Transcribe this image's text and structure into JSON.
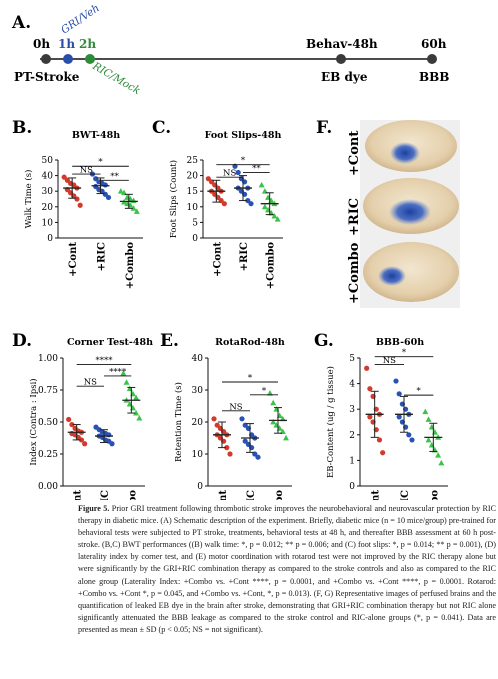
{
  "timeline": {
    "panel_label": "A.",
    "events": [
      {
        "text": "0h",
        "color": "#111111"
      },
      {
        "text": "1h",
        "color": "#2a4fa8"
      },
      {
        "text": "2h",
        "color": "#2e8b3a"
      },
      {
        "text": "Behav-48h",
        "color": "#111111"
      },
      {
        "text": "60h",
        "color": "#111111"
      }
    ],
    "gri": "GRI/Veh",
    "ric": "RIC/Mock",
    "pt": "PT-Stroke",
    "eb": "EB dye",
    "bbb": "BBB"
  },
  "colors": {
    "cont": "#d23a2c",
    "ric": "#2a52b5",
    "combo": "#3cc24a"
  },
  "chart_data": [
    {
      "panel": "B.",
      "type": "scatter",
      "title": "BWT-48h",
      "ylabel": "Walk Time (s)",
      "ylim": [
        0,
        50
      ],
      "yticks": [
        "0",
        "10",
        "20",
        "30",
        "40",
        "50"
      ],
      "categories": [
        "+Cont",
        "+RIC",
        "+Combo"
      ],
      "means": [
        32,
        33.5,
        23.5
      ],
      "sds": [
        6.5,
        5,
        4.5
      ],
      "points": [
        [
          39,
          37,
          35,
          34,
          32,
          31,
          29,
          27,
          25,
          21
        ],
        [
          41,
          38,
          36,
          35,
          34,
          33,
          31,
          30,
          28,
          26
        ],
        [
          30,
          29,
          26,
          25,
          24,
          23,
          22,
          21,
          19,
          17
        ]
      ],
      "sig": [
        {
          "from": 0,
          "to": 1,
          "text": "NS",
          "level": 41
        },
        {
          "from": 0,
          "to": 2,
          "text": "*",
          "level": 46
        },
        {
          "from": 1,
          "to": 2,
          "text": "**",
          "level": 37
        }
      ]
    },
    {
      "panel": "C.",
      "type": "scatter",
      "title": "Foot Slips-48h",
      "ylabel": "Foot Slips (Count)",
      "ylim": [
        0,
        25
      ],
      "yticks": [
        "0",
        "5",
        "10",
        "15",
        "20",
        "25"
      ],
      "categories": [
        "+Cont",
        "+RIC",
        "+Combo"
      ],
      "means": [
        15,
        16,
        11
      ],
      "sds": [
        3.5,
        4,
        3.5
      ],
      "points": [
        [
          19,
          18,
          17,
          16,
          15,
          15,
          14,
          13,
          12,
          11
        ],
        [
          23,
          21,
          19,
          18,
          16,
          16,
          15,
          14,
          12,
          11
        ],
        [
          17,
          15,
          13,
          12,
          11,
          10,
          9,
          8,
          7,
          6
        ]
      ],
      "sig": [
        {
          "from": 0,
          "to": 1,
          "text": "NS",
          "level": 19.5
        },
        {
          "from": 0,
          "to": 2,
          "text": "*",
          "level": 23.5
        },
        {
          "from": 1,
          "to": 2,
          "text": "**",
          "level": 21
        }
      ]
    },
    {
      "panel": "D.",
      "type": "scatter",
      "title": "Corner Test-48h",
      "ylabel": "Index (Contra : Ipsi)",
      "ylim": [
        0,
        1
      ],
      "yticks": [
        "0.00",
        "0.25",
        "0.50",
        "0.75",
        "1.00"
      ],
      "categories": [
        "+Cont",
        "+RIC",
        "+Combo"
      ],
      "means": [
        0.42,
        0.39,
        0.67
      ],
      "sds": [
        0.06,
        0.05,
        0.1
      ],
      "points": [
        [
          0.52,
          0.48,
          0.45,
          0.43,
          0.42,
          0.41,
          0.4,
          0.38,
          0.36,
          0.33
        ],
        [
          0.46,
          0.44,
          0.42,
          0.41,
          0.4,
          0.39,
          0.38,
          0.36,
          0.35,
          0.33
        ],
        [
          0.88,
          0.81,
          0.76,
          0.72,
          0.69,
          0.67,
          0.64,
          0.61,
          0.57,
          0.53
        ]
      ],
      "sig": [
        {
          "from": 0,
          "to": 1,
          "text": "NS",
          "level": 0.78
        },
        {
          "from": 0,
          "to": 2,
          "text": "****",
          "level": 0.95
        },
        {
          "from": 1,
          "to": 2,
          "text": "****",
          "level": 0.86
        }
      ]
    },
    {
      "panel": "E.",
      "type": "scatter",
      "title": "RotaRod-48h",
      "ylabel": "Retention Time (s)",
      "ylim": [
        0,
        40
      ],
      "yticks": [
        "0",
        "10",
        "20",
        "30",
        "40"
      ],
      "categories": [
        "+Cont",
        "+RIC",
        "+Combo"
      ],
      "means": [
        16,
        15,
        20.5
      ],
      "sds": [
        4,
        4.5,
        4
      ],
      "points": [
        [
          21,
          19,
          18,
          17,
          16,
          16,
          15,
          14,
          12,
          10
        ],
        [
          21,
          19,
          18,
          16,
          15,
          14,
          13,
          12,
          10,
          9
        ],
        [
          29,
          26,
          24,
          22,
          21,
          20,
          19,
          18,
          17,
          15
        ]
      ],
      "sig": [
        {
          "from": 0,
          "to": 1,
          "text": "NS",
          "level": 23.5
        },
        {
          "from": 0,
          "to": 2,
          "text": "*",
          "level": 32.5
        },
        {
          "from": 1,
          "to": 2,
          "text": "*",
          "level": 28.5
        }
      ]
    },
    {
      "panel": "G.",
      "type": "scatter",
      "title": "BBB-60h",
      "ylabel": "EB-Content (ug / g tissue)",
      "ylim": [
        0,
        5
      ],
      "yticks": [
        "0",
        "1",
        "2",
        "3",
        "4",
        "5"
      ],
      "categories": [
        "+Cont",
        "+RIC",
        "+Combo"
      ],
      "means": [
        2.8,
        2.8,
        1.9
      ],
      "sds": [
        0.9,
        0.7,
        0.55
      ],
      "points": [
        [
          4.6,
          3.8,
          3.5,
          3.0,
          2.8,
          2.7,
          2.5,
          2.2,
          1.8,
          1.3
        ],
        [
          4.1,
          3.6,
          3.2,
          3.0,
          2.8,
          2.7,
          2.5,
          2.3,
          2.0,
          1.8
        ],
        [
          2.9,
          2.6,
          2.3,
          2.1,
          1.9,
          1.8,
          1.6,
          1.4,
          1.2,
          0.9
        ]
      ],
      "sig": [
        {
          "from": 0,
          "to": 1,
          "text": "NS",
          "level": 4.75
        },
        {
          "from": 0,
          "to": 2,
          "text": "*",
          "level": 5.05
        },
        {
          "from": 1,
          "to": 2,
          "text": "*",
          "level": 3.55
        }
      ]
    }
  ],
  "brains": {
    "panel": "F.",
    "labels": [
      "+Cont",
      "+RIC",
      "+Combo"
    ]
  },
  "caption": {
    "title": "Figure 5.",
    "text": "Prior GRI treatment following thrombotic stroke improves the neurobehavioral and neurovascular protection by RIC therapy in diabetic mice. (A) Schematic description of the experiment. Briefly, diabetic mice (n = 10 mice/group) pre-trained for behavioral tests were subjected to PT stroke, treatments, behavioral tests at 48 h, and thereafter BBB assessment at 60 h post-stroke. (B,C) BWT performances ((B) walk time: *, p = 0.012; ** p = 0.006; and (C) foot slips: *, p = 0.014; ** p = 0.001), (D) laterality index by corner test, and (E) motor coordination with rotarod test were not improved by the RIC therapy alone but were significantly by the GRI+RIC combination therapy as compared to the stroke controls and also as compared to the RIC alone group (Laterality Index: +Combo vs. +Cont ****, p = 0.0001, and +Combo vs. +Cont ****, p = 0.0001. Rotarod: +Combo vs. +Cont *, p = 0.045, and +Combo vs. +Cont, *, p = 0.013). (F, G) Representative images of perfused brains and the quantification of leaked EB dye in the brain after stroke, demonstrating that GRI+RIC combination therapy but not RIC alone significantly attenuated the BBB leakage as compared to the stroke control and RIC-alone groups (*, p = 0.041). Data are presented as mean ± SD (p < 0.05; NS = not significant)."
  }
}
